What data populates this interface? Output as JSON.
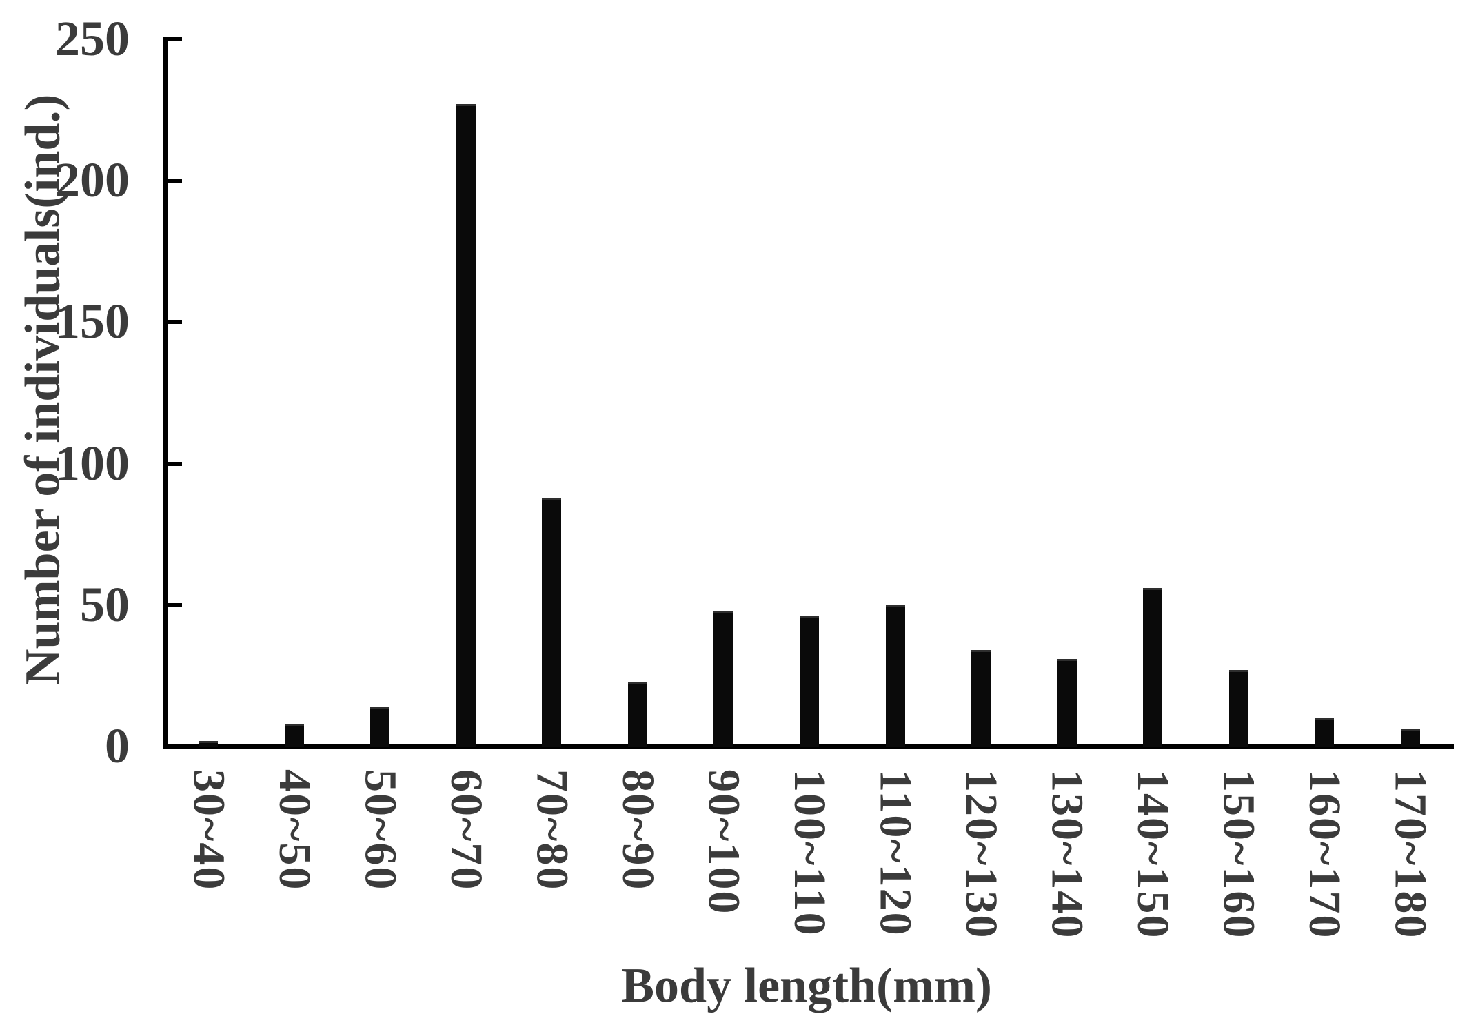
{
  "chart_data": {
    "type": "bar",
    "title": "",
    "xlabel": "Body length(mm)",
    "ylabel": "Number of individuals(ind.)",
    "categories": [
      "30~40",
      "40~50",
      "50~60",
      "60~70",
      "70~80",
      "80~90",
      "90~100",
      "100~110",
      "110~120",
      "120~130",
      "130~140",
      "140~150",
      "150~160",
      "160~170",
      "170~180"
    ],
    "values": [
      2,
      8,
      14,
      227,
      88,
      23,
      48,
      46,
      50,
      34,
      31,
      56,
      27,
      10,
      6
    ],
    "yticks": [
      0,
      50,
      100,
      150,
      200,
      250
    ],
    "ylim": [
      0,
      250
    ],
    "grid": false,
    "legend_position": "none",
    "bar_color": "#0a0a0a",
    "axis_color": "#000000",
    "text_color": "#3b3b3b",
    "background_color": "#ffffff"
  }
}
